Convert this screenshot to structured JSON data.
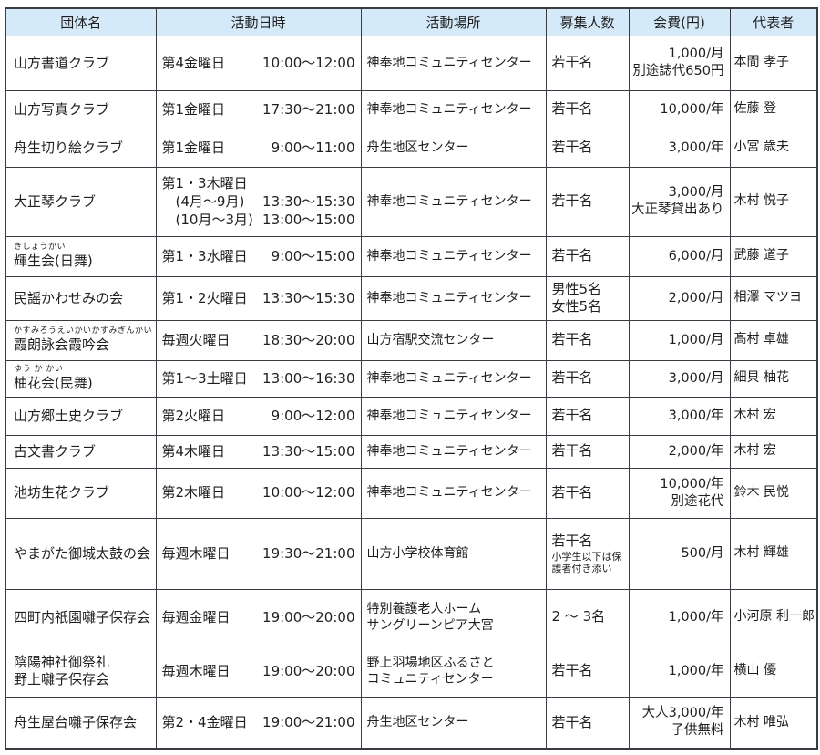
{
  "document": {
    "type": "community-club-schedule-table",
    "language": "ja"
  },
  "colors": {
    "header_bg": "#d5eaf8",
    "border": "#3b3b44",
    "text": "#1f1f22",
    "page_bg": "#ffffff"
  },
  "table": {
    "headers": [
      "団体名",
      "活動日時",
      "活動場所",
      "募集人数",
      "会費(円)",
      "代表者"
    ],
    "rows": [
      {
        "name": "山方書道クラブ",
        "furigana": "",
        "schedule": [
          {
            "day": "第4金曜日",
            "time": "10:00～12:00"
          }
        ],
        "place": "神奉地コミュニティセンター",
        "recruit": "若干名",
        "recruit_note": "",
        "fee": "1,000/月\n別途誌代650円",
        "representative": "本間 孝子"
      },
      {
        "name": "山方写真クラブ",
        "furigana": "",
        "schedule": [
          {
            "day": "第1金曜日",
            "time": "17:30～21:00"
          }
        ],
        "place": "神奉地コミュニティセンター",
        "recruit": "若干名",
        "recruit_note": "",
        "fee": "10,000/年",
        "representative": "佐藤 登"
      },
      {
        "name": "舟生切り絵クラブ",
        "furigana": "",
        "schedule": [
          {
            "day": "第1金曜日",
            "time": "9:00～11:00"
          }
        ],
        "place": "舟生地区センター",
        "recruit": "若干名",
        "recruit_note": "",
        "fee": "3,000/年",
        "representative": "小宮 歳夫"
      },
      {
        "name": "大正琴クラブ",
        "furigana": "",
        "schedule": [
          {
            "day": "第1・3木曜日",
            "time": ""
          },
          {
            "day": "　(4月～9月)",
            "time": "13:30～15:30"
          },
          {
            "day": "　(10月～3月)",
            "time": "13:00～15:00"
          }
        ],
        "place": "神奉地コミュニティセンター",
        "recruit": "若干名",
        "recruit_note": "",
        "fee": "3,000/月\n大正琴貸出あり",
        "representative": "木村 悦子"
      },
      {
        "name": "輝生会(日舞)",
        "furigana": "きしょうかい",
        "schedule": [
          {
            "day": "第1・3水曜日",
            "time": "9:00～15:00"
          }
        ],
        "place": "神奉地コミュニティセンター",
        "recruit": "若干名",
        "recruit_note": "",
        "fee": "6,000/月",
        "representative": "武藤 道子"
      },
      {
        "name": "民謡かわせみの会",
        "furigana": "",
        "schedule": [
          {
            "day": "第1・2火曜日",
            "time": "13:30～15:30"
          }
        ],
        "place": "神奉地コミュニティセンター",
        "recruit": "男性5名\n女性5名",
        "recruit_note": "",
        "fee": "2,000/月",
        "representative": "相澤 マツヨ"
      },
      {
        "name": "霞朗詠会霞吟会",
        "furigana": "かすみろうえいかいかすみぎんかい",
        "schedule": [
          {
            "day": "毎週火曜日",
            "time": "18:30～20:00"
          }
        ],
        "place": "山方宿駅交流センター",
        "recruit": "若干名",
        "recruit_note": "",
        "fee": "1,000/月",
        "representative": "髙村 卓雄"
      },
      {
        "name": "柚花会(民舞)",
        "furigana": "ゆう か かい",
        "schedule": [
          {
            "day": "第1～3土曜日",
            "time": "13:00～16:30"
          }
        ],
        "place": "神奉地コミュニティセンター",
        "recruit": "若干名",
        "recruit_note": "",
        "fee": "3,000/月",
        "representative": "細貝 柚花"
      },
      {
        "name": "山方郷土史クラブ",
        "furigana": "",
        "schedule": [
          {
            "day": "第2火曜日",
            "time": "9:00～12:00"
          }
        ],
        "place": "神奉地コミュニティセンター",
        "recruit": "若干名",
        "recruit_note": "",
        "fee": "3,000/年",
        "representative": "木村 宏"
      },
      {
        "name": "古文書クラブ",
        "furigana": "",
        "schedule": [
          {
            "day": "第4木曜日",
            "time": "13:30～15:00"
          }
        ],
        "place": "神奉地コミュニティセンター",
        "recruit": "若干名",
        "recruit_note": "",
        "fee": "2,000/年",
        "representative": "木村 宏"
      },
      {
        "name": "池坊生花クラブ",
        "furigana": "",
        "schedule": [
          {
            "day": "第2木曜日",
            "time": "10:00～12:00"
          }
        ],
        "place": "神奉地コミュニティセンター",
        "recruit": "若干名",
        "recruit_note": "",
        "fee": "10,000/年\n別途花代",
        "representative": "鈴木 民悦"
      },
      {
        "name": "やまがた御城太鼓の会",
        "furigana": "",
        "schedule": [
          {
            "day": "毎週木曜日",
            "time": "19:30～21:00"
          }
        ],
        "place": "山方小学校体育館",
        "recruit": "若干名",
        "recruit_note": "小学生以下は保護者付き添い",
        "fee": "500/月",
        "representative": "木村 輝雄"
      },
      {
        "name": "四町内祇園囃子保存会",
        "furigana": "",
        "schedule": [
          {
            "day": "毎週金曜日",
            "time": "19:00～20:00"
          }
        ],
        "place": "特別養護老人ホーム\nサングリーンピア大宮",
        "recruit": "2 ～ 3名",
        "recruit_note": "",
        "fee": "1,000/年",
        "representative": "小河原 利一郎"
      },
      {
        "name": "陰陽神社御祭礼\n野上囃子保存会",
        "furigana": "",
        "schedule": [
          {
            "day": "毎週木曜日",
            "time": "19:00～20:00"
          }
        ],
        "place": "野上羽場地区ふるさと\nコミュニティセンター",
        "recruit": "若干名",
        "recruit_note": "",
        "fee": "1,000/年",
        "representative": "横山 優"
      },
      {
        "name": "舟生屋台囃子保存会",
        "furigana": "",
        "schedule": [
          {
            "day": "第2・4金曜日",
            "time": "19:00～21:00"
          }
        ],
        "place": "舟生地区センター",
        "recruit": "若干名",
        "recruit_note": "",
        "fee": "大人3,000/年\n子供無料",
        "representative": "木村 唯弘"
      }
    ]
  }
}
